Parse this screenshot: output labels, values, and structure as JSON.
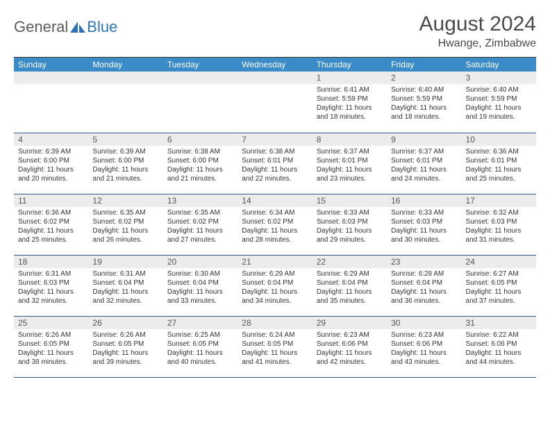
{
  "logo": {
    "text1": "General",
    "text2": "Blue"
  },
  "title": "August 2024",
  "location": "Hwange, Zimbabwe",
  "colors": {
    "header_bg": "#3b8bc9",
    "header_text": "#ffffff",
    "daynum_bg": "#ececec",
    "border": "#2e5a8a",
    "logo_gray": "#5a5a5a",
    "logo_blue": "#2e75b6"
  },
  "day_names": [
    "Sunday",
    "Monday",
    "Tuesday",
    "Wednesday",
    "Thursday",
    "Friday",
    "Saturday"
  ],
  "weeks": [
    [
      null,
      null,
      null,
      null,
      {
        "n": "1",
        "sr": "6:41 AM",
        "ss": "5:59 PM",
        "dl": "11 hours and 18 minutes."
      },
      {
        "n": "2",
        "sr": "6:40 AM",
        "ss": "5:59 PM",
        "dl": "11 hours and 18 minutes."
      },
      {
        "n": "3",
        "sr": "6:40 AM",
        "ss": "5:59 PM",
        "dl": "11 hours and 19 minutes."
      }
    ],
    [
      {
        "n": "4",
        "sr": "6:39 AM",
        "ss": "6:00 PM",
        "dl": "11 hours and 20 minutes."
      },
      {
        "n": "5",
        "sr": "6:39 AM",
        "ss": "6:00 PM",
        "dl": "11 hours and 21 minutes."
      },
      {
        "n": "6",
        "sr": "6:38 AM",
        "ss": "6:00 PM",
        "dl": "11 hours and 21 minutes."
      },
      {
        "n": "7",
        "sr": "6:38 AM",
        "ss": "6:01 PM",
        "dl": "11 hours and 22 minutes."
      },
      {
        "n": "8",
        "sr": "6:37 AM",
        "ss": "6:01 PM",
        "dl": "11 hours and 23 minutes."
      },
      {
        "n": "9",
        "sr": "6:37 AM",
        "ss": "6:01 PM",
        "dl": "11 hours and 24 minutes."
      },
      {
        "n": "10",
        "sr": "6:36 AM",
        "ss": "6:01 PM",
        "dl": "11 hours and 25 minutes."
      }
    ],
    [
      {
        "n": "11",
        "sr": "6:36 AM",
        "ss": "6:02 PM",
        "dl": "11 hours and 25 minutes."
      },
      {
        "n": "12",
        "sr": "6:35 AM",
        "ss": "6:02 PM",
        "dl": "11 hours and 26 minutes."
      },
      {
        "n": "13",
        "sr": "6:35 AM",
        "ss": "6:02 PM",
        "dl": "11 hours and 27 minutes."
      },
      {
        "n": "14",
        "sr": "6:34 AM",
        "ss": "6:02 PM",
        "dl": "11 hours and 28 minutes."
      },
      {
        "n": "15",
        "sr": "6:33 AM",
        "ss": "6:03 PM",
        "dl": "11 hours and 29 minutes."
      },
      {
        "n": "16",
        "sr": "6:33 AM",
        "ss": "6:03 PM",
        "dl": "11 hours and 30 minutes."
      },
      {
        "n": "17",
        "sr": "6:32 AM",
        "ss": "6:03 PM",
        "dl": "11 hours and 31 minutes."
      }
    ],
    [
      {
        "n": "18",
        "sr": "6:31 AM",
        "ss": "6:03 PM",
        "dl": "11 hours and 32 minutes."
      },
      {
        "n": "19",
        "sr": "6:31 AM",
        "ss": "6:04 PM",
        "dl": "11 hours and 32 minutes."
      },
      {
        "n": "20",
        "sr": "6:30 AM",
        "ss": "6:04 PM",
        "dl": "11 hours and 33 minutes."
      },
      {
        "n": "21",
        "sr": "6:29 AM",
        "ss": "6:04 PM",
        "dl": "11 hours and 34 minutes."
      },
      {
        "n": "22",
        "sr": "6:29 AM",
        "ss": "6:04 PM",
        "dl": "11 hours and 35 minutes."
      },
      {
        "n": "23",
        "sr": "6:28 AM",
        "ss": "6:04 PM",
        "dl": "11 hours and 36 minutes."
      },
      {
        "n": "24",
        "sr": "6:27 AM",
        "ss": "6:05 PM",
        "dl": "11 hours and 37 minutes."
      }
    ],
    [
      {
        "n": "25",
        "sr": "6:26 AM",
        "ss": "6:05 PM",
        "dl": "11 hours and 38 minutes."
      },
      {
        "n": "26",
        "sr": "6:26 AM",
        "ss": "6:05 PM",
        "dl": "11 hours and 39 minutes."
      },
      {
        "n": "27",
        "sr": "6:25 AM",
        "ss": "6:05 PM",
        "dl": "11 hours and 40 minutes."
      },
      {
        "n": "28",
        "sr": "6:24 AM",
        "ss": "6:05 PM",
        "dl": "11 hours and 41 minutes."
      },
      {
        "n": "29",
        "sr": "6:23 AM",
        "ss": "6:06 PM",
        "dl": "11 hours and 42 minutes."
      },
      {
        "n": "30",
        "sr": "6:23 AM",
        "ss": "6:06 PM",
        "dl": "11 hours and 43 minutes."
      },
      {
        "n": "31",
        "sr": "6:22 AM",
        "ss": "6:06 PM",
        "dl": "11 hours and 44 minutes."
      }
    ]
  ],
  "labels": {
    "sunrise": "Sunrise:",
    "sunset": "Sunset:",
    "daylight": "Daylight:"
  }
}
